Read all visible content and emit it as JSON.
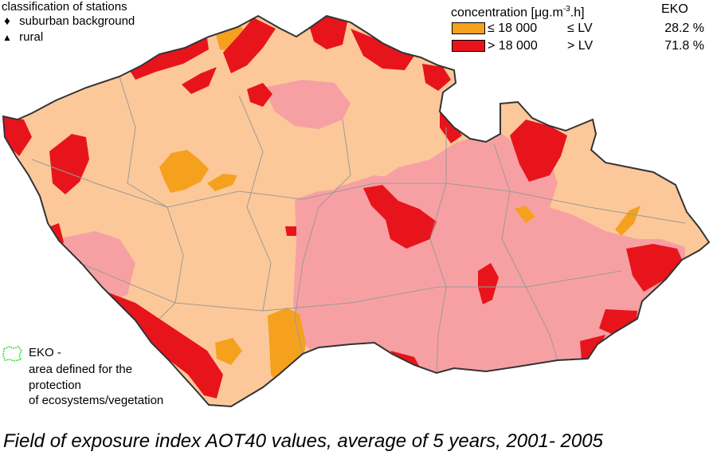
{
  "legend_stations": {
    "title": "classification of stations",
    "items": [
      {
        "symbol": "♦",
        "label": "suburban background"
      },
      {
        "symbol": "▲",
        "label": "rural"
      }
    ]
  },
  "legend_concentration": {
    "header_pre": "concentration [μg.m",
    "header_sup": "-3",
    "header_post": ".h]",
    "eko_header": "EKO",
    "classes": [
      {
        "range": "≤ 18 000",
        "lv": "≤ LV",
        "eko": "28.2 %",
        "color": "#f5a11e"
      },
      {
        "range": "> 18 000",
        "lv": "> LV",
        "eko": "71.8 %",
        "color": "#e8141c"
      }
    ]
  },
  "legend_eko": {
    "icon": "eko-area-outline-icon",
    "line1": "EKO -",
    "line2": "area defined for the",
    "line3": "protection",
    "line4": "of ecosystems/vegetation",
    "color": "#2fe02f"
  },
  "map_colors": {
    "background_light": "#fcc89a",
    "background_pink": "#f7a0a3",
    "orange": "#f5a11e",
    "red": "#e8141c",
    "border": "#333333",
    "district_lines": "#9a9a9a",
    "eko_lines": "#cfe8cf"
  },
  "caption": "Field of exposure index AOT40 values, average of 5 years, 2001- 2005"
}
